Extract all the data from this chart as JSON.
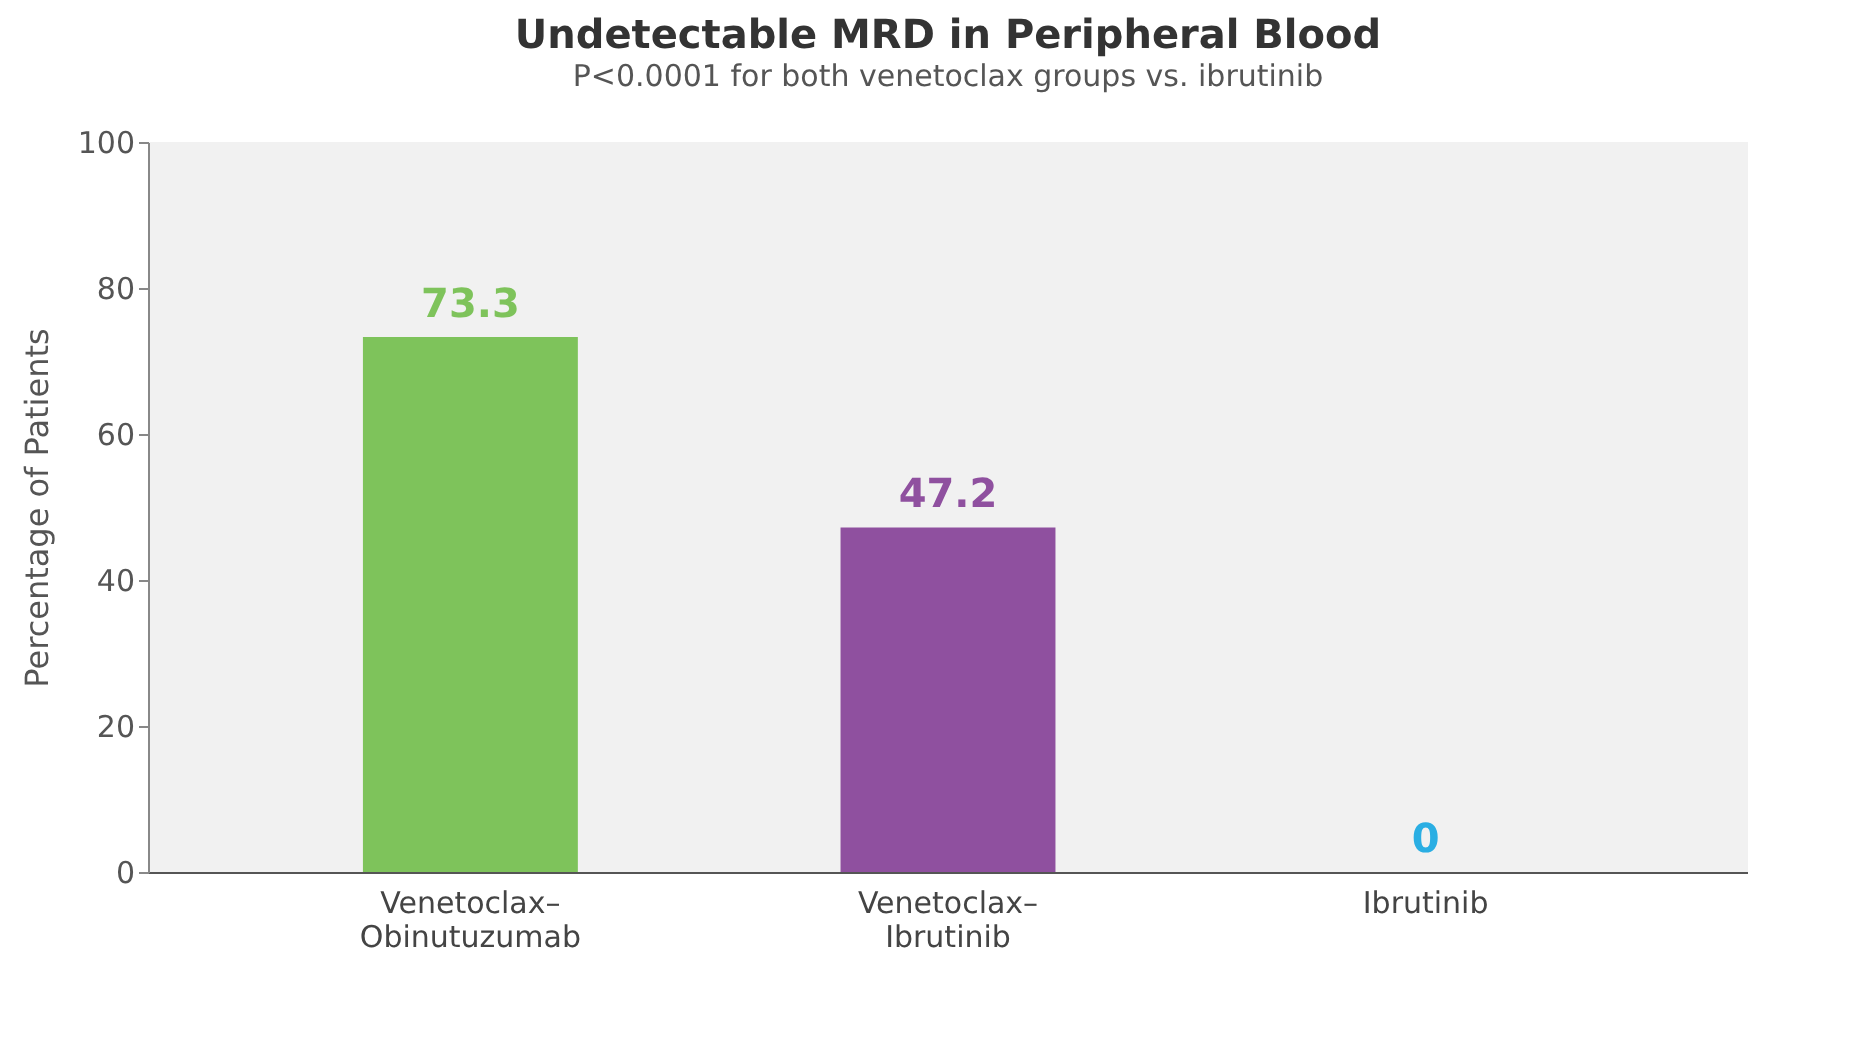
{
  "chart_data": {
    "type": "bar",
    "title": "Undetectable MRD in Peripheral Blood",
    "subtitle": "P<0.0001 for both venetoclax groups vs. ibrutinib",
    "ylabel": "Percentage of Patients",
    "categories": [
      "Venetoclax–Obinutuzumab",
      "Venetoclax–Ibrutinib",
      "Ibrutinib"
    ],
    "values": [
      73.3,
      47.2,
      0
    ],
    "colors": [
      "#7ec35b",
      "#8f509f",
      "#2aaee3"
    ],
    "ylim": [
      0,
      100
    ],
    "yticks": [
      0,
      20,
      40,
      60,
      80,
      100
    ],
    "grid": false,
    "data_labels": true
  }
}
